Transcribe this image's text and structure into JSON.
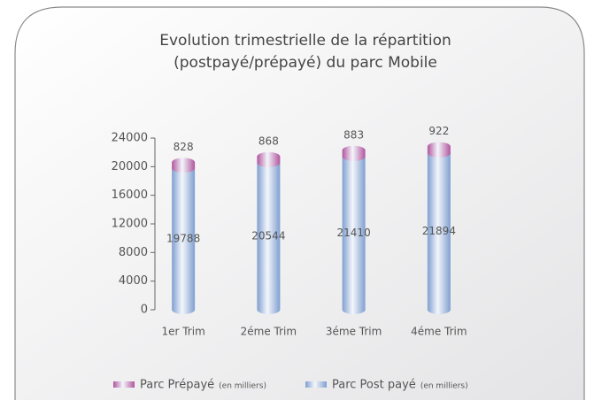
{
  "chart_data": {
    "type": "bar",
    "stacked": true,
    "title": [
      "Evolution trimestrielle de la répartition",
      "(postpayé/prépayé) du parc Mobile"
    ],
    "categories": [
      "1er Trim",
      "2éme Trim",
      "3éme Trim",
      "4éme Trim"
    ],
    "series": [
      {
        "name": "Parc Post payé",
        "color": "#7f9fd0",
        "values": [
          19788,
          20544,
          21410,
          21894
        ]
      },
      {
        "name": "Parc Prépayé",
        "color": "#b0559e",
        "values": [
          828,
          868,
          883,
          922
        ]
      }
    ],
    "legend_unit": "(en milliers)",
    "ylim": [
      0,
      24000
    ],
    "yticks": [
      0,
      4000,
      8000,
      12000,
      16000,
      20000,
      24000
    ],
    "grid": false
  }
}
